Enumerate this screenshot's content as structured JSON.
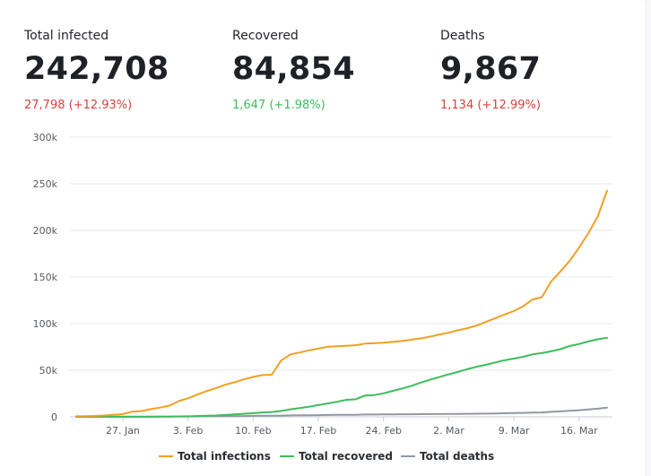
{
  "stats": {
    "infected": {
      "label": "Total infected",
      "value": "242,708",
      "change": "27,798 (+12.93%)",
      "change_color": "#d9413c"
    },
    "recovered": {
      "label": "Recovered",
      "value": "84,854",
      "change": "1,647 (+1.98%)",
      "change_color": "#3dbd5d"
    },
    "deaths": {
      "label": "Deaths",
      "value": "9,867",
      "change": "1,134 (+12.99%)",
      "change_color": "#d9413c"
    }
  },
  "chart_data": {
    "type": "line",
    "x_start_label": "2020-01-22",
    "x_end_label": "2020-03-19",
    "x_ticks": [
      "27. Jan",
      "3. Feb",
      "10. Feb",
      "17. Feb",
      "24. Feb",
      "2. Mar",
      "9. Mar",
      "16. Mar"
    ],
    "y_ticks": [
      "0",
      "50k",
      "100k",
      "150k",
      "200k",
      "250k",
      "300k"
    ],
    "ylim": [
      0,
      300000
    ],
    "grid": true,
    "legend_position": "bottom",
    "series": [
      {
        "name": "Total infections",
        "color": "#f0a023",
        "values": [
          555,
          654,
          941,
          1434,
          2118,
          2927,
          5578,
          6166,
          8234,
          9927,
          12038,
          16787,
          19881,
          23892,
          27635,
          30817,
          34391,
          37120,
          40150,
          42762,
          44802,
          45221,
          60368,
          66885,
          69030,
          71224,
          73258,
          75136,
          75639,
          76197,
          76819,
          78572,
          78958,
          79561,
          80406,
          81388,
          82746,
          84112,
          86011,
          88369,
          90306,
          92840,
          95120,
          97886,
          101801,
          105847,
          109821,
          113590,
          118620,
          125875,
          128352,
          145205,
          156101,
          167454,
          181574,
          197102,
          214910,
          242708
        ]
      },
      {
        "name": "Total recovered",
        "color": "#3dbd5d",
        "values": [
          28,
          30,
          36,
          39,
          52,
          61,
          107,
          126,
          143,
          222,
          284,
          472,
          623,
          852,
          1124,
          1487,
          2011,
          2616,
          3244,
          3946,
          4683,
          5150,
          6295,
          8058,
          9395,
          10865,
          12583,
          14352,
          16121,
          18177,
          18890,
          22886,
          23394,
          25227,
          27905,
          30384,
          33277,
          36711,
          39782,
          42716,
          45602,
          48228,
          51170,
          53796,
          55865,
          58359,
          60694,
          62494,
          64404,
          67003,
          68324,
          70251,
          72624,
          76034,
          78088,
          80840,
          83207,
          84854
        ]
      },
      {
        "name": "Total deaths",
        "color": "#9099a3",
        "values": [
          17,
          18,
          26,
          42,
          56,
          82,
          131,
          133,
          171,
          213,
          259,
          362,
          426,
          492,
          564,
          634,
          719,
          806,
          906,
          1013,
          1113,
          1118,
          1371,
          1523,
          1666,
          1770,
          1868,
          2007,
          2122,
          2247,
          2251,
          2458,
          2469,
          2629,
          2708,
          2770,
          2814,
          2872,
          2941,
          2996,
          3085,
          3160,
          3254,
          3348,
          3460,
          3558,
          3803,
          3996,
          4262,
          4615,
          4720,
          5404,
          5819,
          6440,
          7126,
          7905,
          8733,
          9867
        ]
      }
    ]
  }
}
